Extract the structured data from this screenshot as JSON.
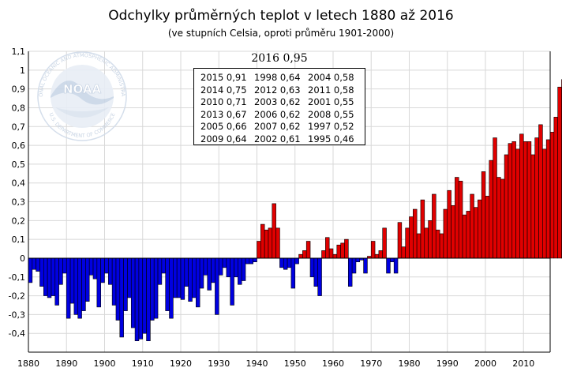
{
  "title": "Odchylky průměrných teplot v letech 1880 až 2016",
  "subtitle": "(ve stupních Celsia, oproti průměru 1901-2000)",
  "highlight": "2016 0,95",
  "ranking": [
    [
      "2015 0,91",
      "1998 0,64",
      "2004 0,58"
    ],
    [
      "2014 0,75",
      "2012 0,63",
      "2011 0,58"
    ],
    [
      "2010 0,71",
      "2003 0,62",
      "2001 0,55"
    ],
    [
      "2013 0,67",
      "2006 0,62",
      "2008 0,55"
    ],
    [
      "2005 0,66",
      "2007 0,62",
      "1997 0,52"
    ],
    [
      "2009 0,64",
      "2002 0,61",
      "1995 0,46"
    ]
  ],
  "logo_text": {
    "center": "NOAA",
    "ring_top": "NATIONAL OCEANIC AND ATMOSPHERIC ADMINISTRATION",
    "ring_bottom": "U.S. DEPARTMENT OF COMMERCE"
  },
  "colors": {
    "positive": "#e00000",
    "negative": "#0000e0",
    "grid": "#d8d8d8",
    "axis": "#000000"
  },
  "chart_data": {
    "type": "bar",
    "title": "Odchylky průměrných teplot v letech 1880 až 2016",
    "subtitle": "(ve stupních Celsia, oproti průměru 1901-2000)",
    "xlabel": "",
    "ylabel": "",
    "ylim": [
      -0.5,
      1.1
    ],
    "yticks": [
      "-0,4",
      "-0,3",
      "-0,2",
      "-0,1",
      "0",
      "0,1",
      "0,2",
      "0,3",
      "0,4",
      "0,5",
      "0,6",
      "0,7",
      "0,8",
      "0,9",
      "1",
      "1,1"
    ],
    "xticks": [
      "1880",
      "1890",
      "1900",
      "1910",
      "1920",
      "1930",
      "1940",
      "1950",
      "1960",
      "1970",
      "1980",
      "1990",
      "2000",
      "2010"
    ],
    "grid": true,
    "x_start": 1880,
    "x_end": 2016,
    "values": [
      -0.13,
      -0.06,
      -0.07,
      -0.15,
      -0.2,
      -0.21,
      -0.2,
      -0.25,
      -0.14,
      -0.08,
      -0.32,
      -0.24,
      -0.3,
      -0.32,
      -0.28,
      -0.23,
      -0.09,
      -0.11,
      -0.26,
      -0.13,
      -0.08,
      -0.14,
      -0.25,
      -0.33,
      -0.42,
      -0.28,
      -0.21,
      -0.37,
      -0.44,
      -0.43,
      -0.4,
      -0.44,
      -0.33,
      -0.32,
      -0.14,
      -0.08,
      -0.28,
      -0.32,
      -0.21,
      -0.21,
      -0.22,
      -0.15,
      -0.23,
      -0.21,
      -0.26,
      -0.16,
      -0.09,
      -0.17,
      -0.13,
      -0.3,
      -0.09,
      -0.05,
      -0.1,
      -0.25,
      -0.1,
      -0.14,
      -0.12,
      -0.03,
      -0.03,
      -0.02,
      0.09,
      0.18,
      0.15,
      0.16,
      0.29,
      0.16,
      -0.05,
      -0.06,
      -0.05,
      -0.16,
      -0.03,
      0.02,
      0.04,
      0.09,
      -0.1,
      -0.15,
      -0.2,
      0.04,
      0.11,
      0.05,
      0.02,
      0.07,
      0.08,
      0.1,
      -0.15,
      -0.08,
      -0.02,
      -0.01,
      -0.08,
      0.01,
      0.09,
      0.02,
      0.04,
      0.16,
      -0.08,
      -0.02,
      -0.08,
      0.19,
      0.06,
      0.16,
      0.22,
      0.26,
      0.13,
      0.31,
      0.16,
      0.2,
      0.34,
      0.15,
      0.13,
      0.26,
      0.36,
      0.28,
      0.43,
      0.41,
      0.23,
      0.25,
      0.34,
      0.27,
      0.31,
      0.46,
      0.33,
      0.52,
      0.64,
      0.43,
      0.42,
      0.55,
      0.61,
      0.62,
      0.58,
      0.66,
      0.62,
      0.62,
      0.55,
      0.64,
      0.71,
      0.58,
      0.63,
      0.67,
      0.75,
      0.91,
      0.95
    ]
  }
}
